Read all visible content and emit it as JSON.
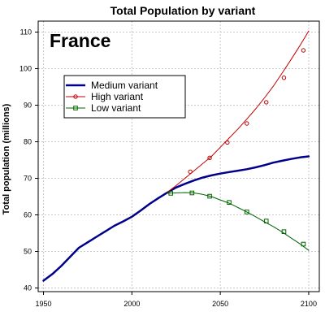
{
  "chart_data": {
    "type": "line",
    "title": "Total Population by variant",
    "xlabel": "",
    "ylabel": "Total population (millions)",
    "annotation": "France",
    "xlim": [
      1947,
      2106
    ],
    "ylim": [
      39,
      113
    ],
    "x_ticks": [
      1950,
      2000,
      2050,
      2100
    ],
    "y_ticks": [
      40,
      50,
      60,
      70,
      80,
      90,
      100,
      110
    ],
    "grid": true,
    "legend_position": "top-left",
    "series": [
      {
        "name": "Medium variant",
        "color": "#00008b",
        "marker": "none",
        "x": [
          1950,
          1955,
          1960,
          1965,
          1970,
          1975,
          1980,
          1985,
          1990,
          1995,
          2000,
          2005,
          2010,
          2015,
          2020,
          2025,
          2030,
          2035,
          2040,
          2045,
          2050,
          2055,
          2060,
          2065,
          2070,
          2075,
          2080,
          2085,
          2090,
          2095,
          2100
        ],
        "values": [
          42,
          43.8,
          46,
          48.5,
          51,
          52.5,
          54,
          55.5,
          57,
          58.2,
          59.5,
          61.2,
          63,
          64.6,
          66.1,
          67.5,
          68.5,
          69.4,
          70.2,
          70.8,
          71.3,
          71.7,
          72.1,
          72.5,
          73.0,
          73.6,
          74.3,
          74.8,
          75.3,
          75.7,
          76.0
        ]
      },
      {
        "name": "High variant",
        "color": "#c00000",
        "marker": "circle",
        "x": [
          2020,
          2025,
          2030,
          2035,
          2040,
          2045,
          2050,
          2055,
          2060,
          2065,
          2070,
          2075,
          2080,
          2085,
          2090,
          2095,
          2100
        ],
        "values": [
          66.2,
          68.0,
          70.0,
          72.0,
          74.0,
          76.0,
          78.5,
          81.0,
          83.5,
          86.2,
          89.0,
          92.0,
          95.2,
          98.8,
          102.5,
          106.3,
          110.3
        ],
        "marker_x": [
          2033,
          2044,
          2054,
          2065,
          2076,
          2086,
          2097
        ],
        "marker_values": [
          71.8,
          75.6,
          79.8,
          85.0,
          90.8,
          97.5,
          105.0
        ]
      },
      {
        "name": "Low variant",
        "color": "#006400",
        "marker": "square",
        "x": [
          2020,
          2025,
          2030,
          2035,
          2040,
          2045,
          2050,
          2055,
          2060,
          2065,
          2070,
          2075,
          2080,
          2085,
          2090,
          2095,
          2100
        ],
        "values": [
          65.9,
          66.0,
          66.1,
          66.0,
          65.6,
          65.0,
          64.1,
          63.2,
          62.0,
          60.8,
          59.5,
          58.1,
          56.8,
          55.3,
          53.7,
          52.1,
          50.3
        ],
        "marker_x": [
          2022,
          2034,
          2044,
          2055,
          2065,
          2076,
          2086,
          2097
        ],
        "marker_values": [
          65.9,
          66.0,
          65.1,
          63.4,
          60.8,
          58.3,
          55.4,
          52.0
        ]
      }
    ]
  }
}
